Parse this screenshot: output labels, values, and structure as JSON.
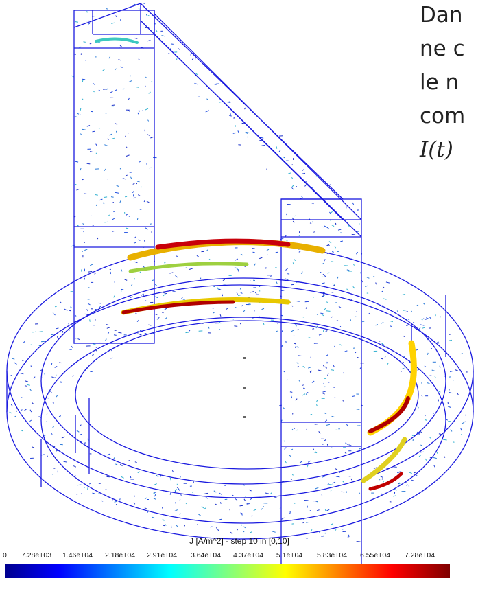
{
  "side_text": {
    "lines": [
      "Dan",
      "ne c",
      "le n",
      "com",
      "I(t)"
    ]
  },
  "colorbar": {
    "title": "J [A/m^2] - step 10 in [0,10]",
    "ticks": [
      "0",
      "7.28e+03",
      "1.46e+04",
      "2.18e+04",
      "2.91e+04",
      "3.64e+04",
      "4.37e+04",
      "5.1e+04",
      "5.83e+04",
      "6.55e+04",
      "7.28e+04"
    ]
  }
}
